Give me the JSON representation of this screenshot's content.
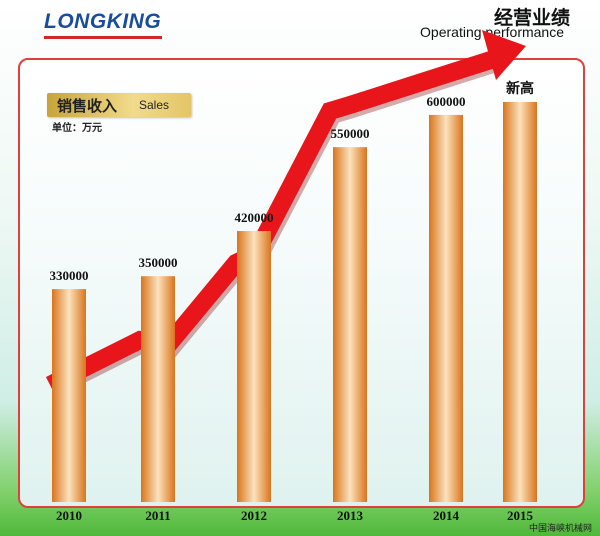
{
  "header": {
    "logo": "LONGKING",
    "title": "经营业绩",
    "subtitle": "Operating performance"
  },
  "legend": {
    "label_cn": "销售收入",
    "label_en": "Sales",
    "unit": "单位：万元"
  },
  "watermark": "中国海峡机械网",
  "colors": {
    "bar": "#e8902e",
    "arrow": "#e8151a",
    "frame": "#e0403a"
  },
  "chart_data": {
    "type": "bar",
    "categories": [
      "2010",
      "2011",
      "2012",
      "2013",
      "2014",
      "2015"
    ],
    "values": [
      330000,
      350000,
      420000,
      550000,
      600000,
      620000
    ],
    "data_labels": [
      "330000",
      "350000",
      "420000",
      "550000",
      "600000",
      "新高"
    ],
    "trend_arrow": true,
    "title": "",
    "xlabel": "",
    "ylabel": ""
  }
}
